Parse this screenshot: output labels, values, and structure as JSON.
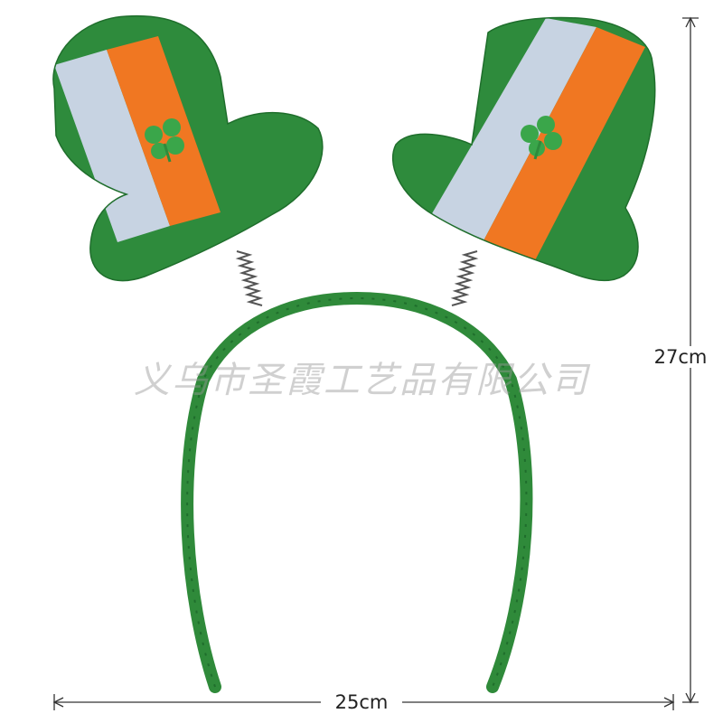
{
  "image": {
    "subject": "felt-top-hat-headband",
    "colors": {
      "green": "#2e8b3c",
      "white_stripe": "#c7d3e2",
      "orange_stripe": "#f07722",
      "band_green": "#2f8a3a"
    }
  },
  "watermark": {
    "text": "义乌市圣霞工艺品有限公司"
  },
  "dimensions": {
    "width_label": "25cm",
    "height_label": "27cm"
  }
}
